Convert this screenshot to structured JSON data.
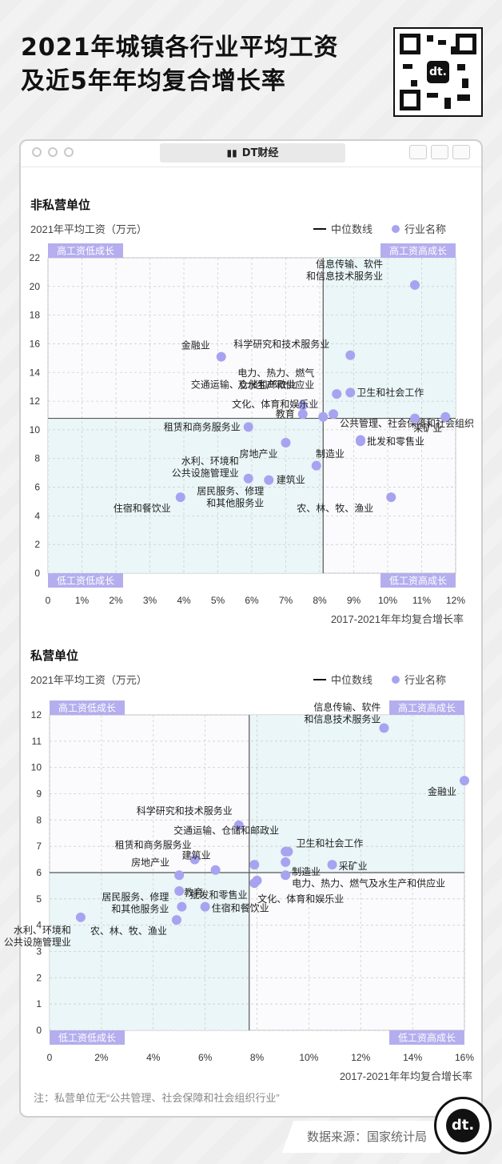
{
  "title_line1": "2021年城镇各行业平均工资",
  "title_line2": "及近5年年均复合增长率",
  "window_title": "DT财经",
  "logo_text": "dt.",
  "source": "数据来源：国家统计局",
  "note": "注：私营单位无“公共管理、社会保障和社会组织行业”",
  "colors": {
    "dot": "#a7a3f0",
    "quad_fill": "#eaf6f8",
    "median": "#555555",
    "tag_bg": "#b4aeee",
    "grid": "#cfcfcf"
  },
  "chart_data": [
    {
      "type": "scatter",
      "section_title": "非私营单位",
      "ylabel": "2021年平均工资（万元）",
      "xlabel": "2017-2021年年均复合增长率",
      "legend": {
        "median_label": "中位数线",
        "point_label": "行业名称",
        "position": "top-right"
      },
      "quadrants": {
        "tl": "高工资低成长",
        "tr": "高工资高成长",
        "bl": "低工资低成长",
        "br": "低工资高成长"
      },
      "xlim": [
        0,
        12
      ],
      "ylim": [
        0,
        22
      ],
      "xticks": [
        0,
        1,
        2,
        3,
        4,
        5,
        6,
        7,
        8,
        9,
        10,
        11,
        12
      ],
      "xtick_labels": [
        "0",
        "1%",
        "2%",
        "3%",
        "4%",
        "5%",
        "6%",
        "7%",
        "8%",
        "9%",
        "10%",
        "11%",
        "12%"
      ],
      "yticks": [
        0,
        2,
        4,
        6,
        8,
        10,
        12,
        14,
        16,
        18,
        20,
        22
      ],
      "ytick_labels": [
        "0",
        "2",
        "4",
        "6",
        "8",
        "10",
        "12",
        "14",
        "16",
        "18",
        "20",
        "22"
      ],
      "median": {
        "x": 8.1,
        "y": 10.8
      },
      "grid": true,
      "points": [
        {
          "label": "信息传输、软件\n和信息技术服务业",
          "x": 10.8,
          "y": 20.1
        },
        {
          "label": "金融业",
          "x": 5.1,
          "y": 15.1
        },
        {
          "label": "科学研究和技术服务业",
          "x": 8.9,
          "y": 15.2
        },
        {
          "label": "电力、热力、燃气\n及水生产和供应业",
          "x": 8.5,
          "y": 12.5
        },
        {
          "label": "卫生和社会工作",
          "x": 8.9,
          "y": 12.6
        },
        {
          "label": "交通运输、仓储和邮政业",
          "x": 7.5,
          "y": 11.7
        },
        {
          "label": "文化、体育和娱乐业",
          "x": 8.1,
          "y": 10.9
        },
        {
          "label": "教育",
          "x": 7.5,
          "y": 11.1
        },
        {
          "label": "公共管理、社会保障和社会组织",
          "x": 8.4,
          "y": 11.1
        },
        {
          "label": "采矿业",
          "x": 11.7,
          "y": 10.9
        },
        {
          "label": "",
          "x": 10.8,
          "y": 10.8
        },
        {
          "label": "租赁和商务服务业",
          "x": 5.9,
          "y": 10.2
        },
        {
          "label": "房地产业",
          "x": 7.0,
          "y": 9.1
        },
        {
          "label": "批发和零售业",
          "x": 9.2,
          "y": 9.3
        },
        {
          "label": "制造业",
          "x": 9.2,
          "y": 9.2
        },
        {
          "label": "建筑业",
          "x": 7.9,
          "y": 7.5
        },
        {
          "label": "水利、环境和\n公共设施管理业",
          "x": 5.9,
          "y": 6.6
        },
        {
          "label": "居民服务、修理\n和其他服务业",
          "x": 6.5,
          "y": 6.5
        },
        {
          "label": "住宿和餐饮业",
          "x": 3.9,
          "y": 5.3
        },
        {
          "label": "农、林、牧、渔业",
          "x": 10.1,
          "y": 5.3
        }
      ]
    },
    {
      "type": "scatter",
      "section_title": "私营单位",
      "ylabel": "2021年平均工资（万元）",
      "xlabel": "2017-2021年年均复合增长率",
      "legend": {
        "median_label": "中位数线",
        "point_label": "行业名称",
        "position": "top-right"
      },
      "quadrants": {
        "tl": "高工资低成长",
        "tr": "高工资高成长",
        "bl": "低工资低成长",
        "br": "低工资高成长"
      },
      "xlim": [
        0,
        16
      ],
      "ylim": [
        0,
        12
      ],
      "xticks": [
        0,
        2,
        4,
        6,
        8,
        10,
        12,
        14,
        16
      ],
      "xtick_labels": [
        "0",
        "2%",
        "4%",
        "6%",
        "8%",
        "10%",
        "12%",
        "14%",
        "16%"
      ],
      "yticks": [
        0,
        1,
        2,
        3,
        4,
        5,
        6,
        7,
        8,
        9,
        10,
        11,
        12
      ],
      "ytick_labels": [
        "0",
        "1",
        "2",
        "3",
        "4",
        "5",
        "6",
        "7",
        "8",
        "9",
        "10",
        "11",
        "12"
      ],
      "median": {
        "x": 7.7,
        "y": 6.0
      },
      "grid": true,
      "points": [
        {
          "label": "信息传输、软件\n和信息技术服务业",
          "x": 12.9,
          "y": 11.5
        },
        {
          "label": "金融业",
          "x": 16.0,
          "y": 9.5
        },
        {
          "label": "科学研究和技术服务业",
          "x": 7.3,
          "y": 7.8
        },
        {
          "label": "交通运输、仓储和邮政业",
          "x": 9.1,
          "y": 6.8
        },
        {
          "label": "卫生和社会工作",
          "x": 9.2,
          "y": 6.8
        },
        {
          "label": "制造业",
          "x": 9.1,
          "y": 6.4
        },
        {
          "label": "采矿业",
          "x": 10.9,
          "y": 6.3
        },
        {
          "label": "租赁和商务服务业",
          "x": 5.6,
          "y": 6.5
        },
        {
          "label": "建筑业",
          "x": 6.4,
          "y": 6.1
        },
        {
          "label": "",
          "x": 7.9,
          "y": 6.3
        },
        {
          "label": "房地产业",
          "x": 5.0,
          "y": 5.9
        },
        {
          "label": "电力、热力、燃气及水生产和供应业",
          "x": 9.1,
          "y": 5.9
        },
        {
          "label": "批发和零售业",
          "x": 8.0,
          "y": 5.7
        },
        {
          "label": "文化、体育和娱乐业",
          "x": 7.9,
          "y": 5.6
        },
        {
          "label": "教育",
          "x": 5.0,
          "y": 5.3
        },
        {
          "label": "居民服务、修理\n和其他服务业",
          "x": 5.1,
          "y": 4.7
        },
        {
          "label": "住宿和餐饮业",
          "x": 6.0,
          "y": 4.7
        },
        {
          "label": "农、林、牧、渔业",
          "x": 4.9,
          "y": 4.2
        },
        {
          "label": "水利、环境和\n公共设施管理业",
          "x": 1.2,
          "y": 4.3
        }
      ]
    }
  ]
}
